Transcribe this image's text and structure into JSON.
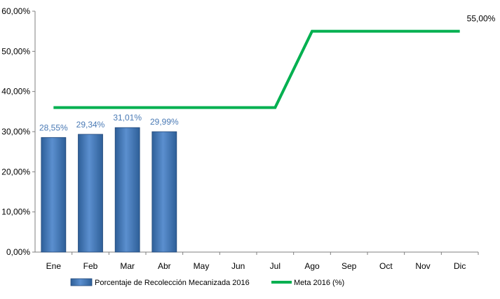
{
  "chart_data": {
    "type": "bar",
    "categories": [
      "Ene",
      "Feb",
      "Mar",
      "Abr",
      "May",
      "Jun",
      "Jul",
      "Ago",
      "Sep",
      "Oct",
      "Nov",
      "Dic"
    ],
    "series": [
      {
        "name": "Porcentaje de Recolección Mecanizada 2016",
        "type": "bar",
        "values": [
          28.55,
          29.34,
          31.01,
          29.99,
          null,
          null,
          null,
          null,
          null,
          null,
          null,
          null
        ],
        "labels": [
          "28,55%",
          "29,34%",
          "31,01%",
          "29,99%"
        ],
        "color": "#4f81bd",
        "label_color": "#4a7ab5"
      },
      {
        "name": "Meta 2016 (%)",
        "type": "line",
        "values": [
          36,
          36,
          36,
          36,
          36,
          36,
          36,
          55,
          55,
          55,
          55,
          55
        ],
        "end_label": "55,00%",
        "color": "#00b050"
      }
    ],
    "yticks": [
      "0,00%",
      "10,00%",
      "20,00%",
      "30,00%",
      "40,00%",
      "50,00%",
      "60,00%"
    ],
    "ylim": [
      0,
      60
    ],
    "grid": false,
    "legend_position": "bottom",
    "xlabel": "",
    "ylabel": "",
    "title": ""
  }
}
